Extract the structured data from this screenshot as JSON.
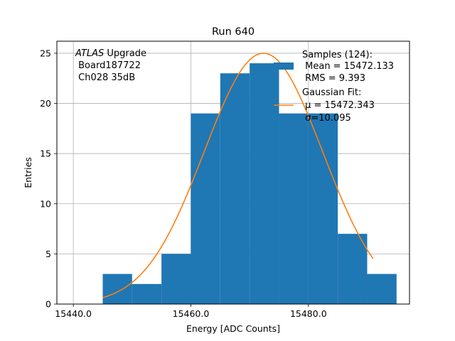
{
  "chart_data": {
    "type": "bar",
    "title": "Run 640",
    "xlabel": "Energy [ADC Counts]",
    "ylabel": "Entries",
    "xlim": [
      15437.2,
      15497.2
    ],
    "ylim": [
      0,
      26.2
    ],
    "xticks": [
      15440.0,
      15460.0,
      15480.0
    ],
    "xtick_labels": [
      "15440.0",
      "15460.0",
      "15480.0"
    ],
    "yticks": [
      0,
      5,
      10,
      15,
      20,
      25
    ],
    "ytick_labels": [
      "0",
      "5",
      "10",
      "15",
      "20",
      "25"
    ],
    "grid": true,
    "histogram": {
      "bin_edges": [
        15445,
        15450,
        15455,
        15460,
        15465,
        15470,
        15475,
        15480,
        15485,
        15490,
        15495
      ],
      "counts": [
        3,
        2,
        5,
        19,
        23,
        24,
        19,
        19,
        7,
        3
      ],
      "color": "#1f77b4"
    },
    "fit": {
      "mu": 15472.343,
      "sigma": 10.095,
      "amplitude": 25.0,
      "x_range": [
        15445,
        15491
      ],
      "color": "#ff7f0e"
    },
    "annotation": {
      "line1_italic": "ATLAS",
      "line1_rest": " Upgrade",
      "line2": " Board187722",
      "line3": " Ch028 35dB"
    },
    "legend": {
      "position": "top-right",
      "entries": [
        {
          "kind": "patch",
          "color": "#1f77b4",
          "lines": [
            "Samples (124):",
            " Mean = 15472.133",
            " RMS = 9.393"
          ]
        },
        {
          "kind": "line",
          "color": "#ff7f0e",
          "lines": [
            "Gaussian Fit:",
            " μ = 15472.343",
            " σ=10.095"
          ]
        }
      ]
    }
  }
}
